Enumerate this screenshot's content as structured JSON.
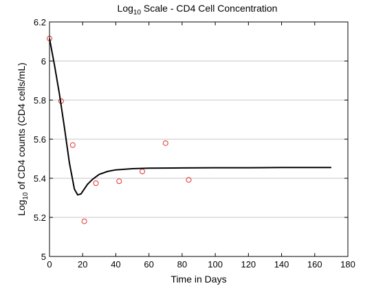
{
  "chart_data": {
    "type": "line",
    "title_parts": {
      "prefix": "Log",
      "subscript": "10",
      "suffix": " Scale - CD4 Cell Concentration"
    },
    "xlabel": "Time in Days",
    "ylabel_parts": {
      "prefix": "Log",
      "subscript": "10",
      "suffix": " of CD4 counts (CD4 cells/mL)"
    },
    "xlim": [
      0,
      180
    ],
    "ylim": [
      5,
      6.2
    ],
    "x_ticks": [
      0,
      20,
      40,
      60,
      80,
      100,
      120,
      140,
      160,
      180
    ],
    "y_ticks": [
      5,
      5.2,
      5.4,
      5.6,
      5.8,
      6,
      6.2
    ],
    "grid": "horizontal",
    "series": [
      {
        "kind": "scatter",
        "marker": "open-circle",
        "color": "#e0302c",
        "x": [
          0,
          7,
          14,
          21,
          28,
          42,
          56,
          70,
          84
        ],
        "y": [
          6.115,
          5.795,
          5.57,
          5.18,
          5.375,
          5.385,
          5.435,
          5.58,
          5.392
        ]
      },
      {
        "kind": "line",
        "color": "#000000",
        "x": [
          0,
          3,
          6,
          9,
          12,
          15,
          17,
          19,
          21,
          23,
          26,
          30,
          35,
          40,
          50,
          60,
          80,
          100,
          120,
          140,
          170
        ],
        "y": [
          6.115,
          5.98,
          5.83,
          5.66,
          5.48,
          5.345,
          5.315,
          5.32,
          5.345,
          5.37,
          5.395,
          5.42,
          5.435,
          5.443,
          5.449,
          5.452,
          5.453,
          5.454,
          5.454,
          5.455,
          5.455
        ]
      }
    ]
  }
}
